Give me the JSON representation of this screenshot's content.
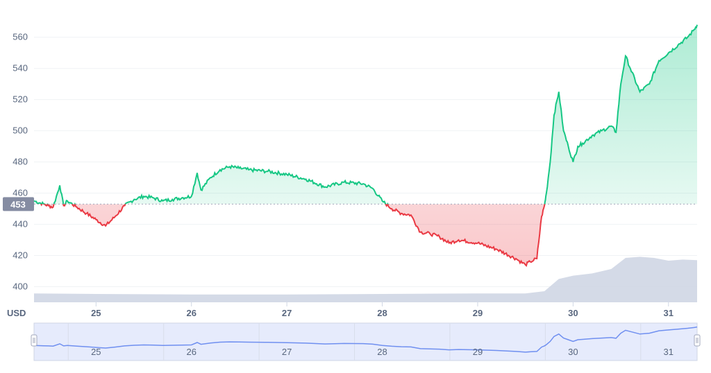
{
  "chart_data": {
    "type": "line",
    "currency_label": "USD",
    "baseline_value": 453,
    "baseline_label": "453",
    "ylim": [
      390,
      575
    ],
    "y_ticks": [
      400,
      420,
      440,
      460,
      480,
      500,
      520,
      540,
      560
    ],
    "x_ticks": [
      "25",
      "26",
      "27",
      "28",
      "29",
      "30",
      "31"
    ],
    "xlim": [
      24.35,
      31.3
    ],
    "grid": true,
    "colors": {
      "above": "#16c784",
      "below": "#ea3943",
      "volume": "#cfd6e4",
      "navigator": "#6f8ff0",
      "navigator_fill": "#e6ebfc"
    },
    "series": [
      {
        "x": [
          24.35,
          24.45,
          24.5,
          24.55,
          24.62,
          24.66,
          24.7,
          24.8,
          24.9,
          25.0,
          25.1,
          25.2,
          25.3,
          25.4,
          25.5,
          25.6,
          25.7,
          25.8,
          25.9,
          26.0,
          26.06,
          26.1,
          26.2,
          26.3,
          26.4,
          26.5,
          26.6,
          26.8,
          27.0,
          27.2,
          27.4,
          27.6,
          27.8,
          27.9,
          28.0,
          28.1,
          28.2,
          28.3,
          28.4,
          28.5,
          28.6,
          28.7,
          28.8,
          29.0,
          29.2,
          29.4,
          29.5,
          29.55,
          29.62,
          29.67,
          29.7,
          29.72,
          29.76,
          29.8,
          29.85,
          29.9,
          29.95,
          30.0,
          30.05,
          30.1,
          30.2,
          30.3,
          30.4,
          30.45,
          30.5,
          30.55,
          30.6,
          30.7,
          30.8,
          30.9,
          31.0,
          31.1,
          31.2,
          31.27,
          31.3
        ],
        "y": [
          455,
          453,
          452,
          451,
          465,
          452,
          455,
          451,
          447,
          443,
          439,
          445,
          452,
          456,
          458,
          457,
          455,
          456,
          457,
          458,
          473,
          462,
          470,
          475,
          477,
          476,
          475,
          474,
          472,
          469,
          464,
          467,
          466,
          463,
          455,
          450,
          447,
          446,
          435,
          434,
          432,
          428,
          430,
          428,
          424,
          418,
          414,
          416,
          418,
          445,
          452,
          460,
          480,
          510,
          525,
          500,
          490,
          480,
          490,
          492,
          497,
          500,
          503,
          499,
          530,
          548,
          540,
          525,
          530,
          545,
          550,
          555,
          560,
          565,
          568
        ]
      }
    ],
    "volume": {
      "x": [
        24.35,
        25.0,
        26.0,
        27.0,
        28.0,
        29.0,
        29.5,
        29.7,
        29.85,
        30.0,
        30.2,
        30.4,
        30.55,
        30.7,
        30.85,
        31.0,
        31.15,
        31.3
      ],
      "y": [
        0.16,
        0.15,
        0.14,
        0.14,
        0.15,
        0.16,
        0.16,
        0.2,
        0.42,
        0.48,
        0.52,
        0.6,
        0.8,
        0.82,
        0.8,
        0.75,
        0.77,
        0.76
      ]
    }
  }
}
